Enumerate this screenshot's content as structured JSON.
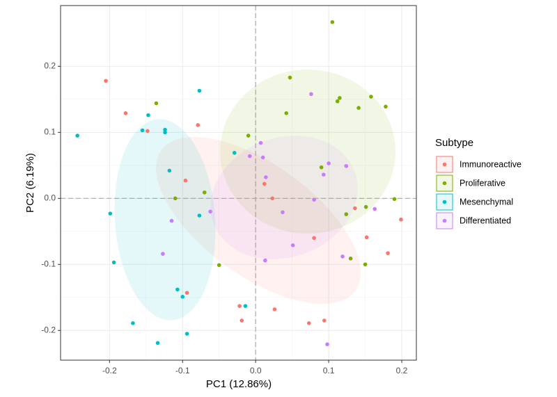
{
  "chart_data": {
    "type": "scatter",
    "x_label": "PC1 (12.86%)",
    "y_label": "PC2 (6.19%)",
    "xlim": [
      -0.267,
      0.22
    ],
    "ylim": [
      -0.245,
      0.292
    ],
    "xticks": [
      -0.2,
      -0.1,
      {
        "value": 0,
        "label": "0.0"
      },
      0.1,
      0.2
    ],
    "yticks": [
      -0.2,
      -0.1,
      {
        "value": 0,
        "label": "0.0"
      },
      0.1,
      0.2
    ],
    "grid": true,
    "zero_lines": true,
    "legend_title": "Subtype",
    "legend_position": "right",
    "series": [
      {
        "name": "Immunoreactive",
        "color": "#F8766D",
        "x": [
          -0.205,
          -0.178,
          -0.148,
          -0.079,
          -0.096,
          -0.094,
          -0.022,
          -0.019,
          0.012,
          0.023,
          0.026,
          0.073,
          0.094,
          0.08,
          0.136,
          0.152,
          0.181,
          0.199
        ],
        "values": [
          0.178,
          0.129,
          0.102,
          0.111,
          0.027,
          -0.143,
          -0.163,
          -0.185,
          0.022,
          0.0,
          -0.168,
          -0.189,
          -0.185,
          -0.06,
          -0.015,
          -0.059,
          -0.083,
          -0.032
        ]
      },
      {
        "name": "Proliferative",
        "color": "#7CAE00",
        "x": [
          -0.136,
          -0.11,
          -0.07,
          -0.05,
          -0.01,
          0.042,
          0.047,
          0.105,
          0.112,
          0.115,
          0.141,
          0.158,
          0.178,
          0.09,
          0.124,
          0.13,
          0.15,
          0.151,
          0.19
        ],
        "values": [
          0.144,
          0.0,
          0.009,
          -0.101,
          0.095,
          0.129,
          0.183,
          0.267,
          0.147,
          0.152,
          0.137,
          0.154,
          0.139,
          0.047,
          -0.024,
          -0.091,
          -0.1,
          -0.013,
          -0.001
        ]
      },
      {
        "name": "Mesenchymal",
        "color": "#00BFC4",
        "x": [
          -0.244,
          -0.199,
          -0.194,
          -0.155,
          -0.147,
          -0.124,
          -0.124,
          -0.118,
          -0.077,
          -0.077,
          -0.107,
          -0.1,
          -0.168,
          -0.134,
          -0.094,
          -0.029,
          -0.014
        ],
        "values": [
          0.095,
          -0.023,
          -0.097,
          0.103,
          0.126,
          0.104,
          0.1,
          0.042,
          0.163,
          -0.026,
          -0.138,
          -0.149,
          -0.189,
          -0.219,
          -0.205,
          0.069,
          -0.163
        ]
      },
      {
        "name": "Differentiated",
        "color": "#C77CFF",
        "x": [
          -0.115,
          -0.127,
          -0.062,
          -0.008,
          0.007,
          0.01,
          0.014,
          0.013,
          0.037,
          0.051,
          0.076,
          0.08,
          0.093,
          0.1,
          0.124,
          0.119,
          0.163,
          0.098
        ],
        "values": [
          -0.034,
          -0.084,
          -0.02,
          0.064,
          0.084,
          0.062,
          0.032,
          -0.094,
          -0.021,
          -0.071,
          0.158,
          -0.002,
          0.036,
          0.053,
          0.049,
          -0.088,
          -0.016,
          -0.221
        ]
      }
    ]
  }
}
